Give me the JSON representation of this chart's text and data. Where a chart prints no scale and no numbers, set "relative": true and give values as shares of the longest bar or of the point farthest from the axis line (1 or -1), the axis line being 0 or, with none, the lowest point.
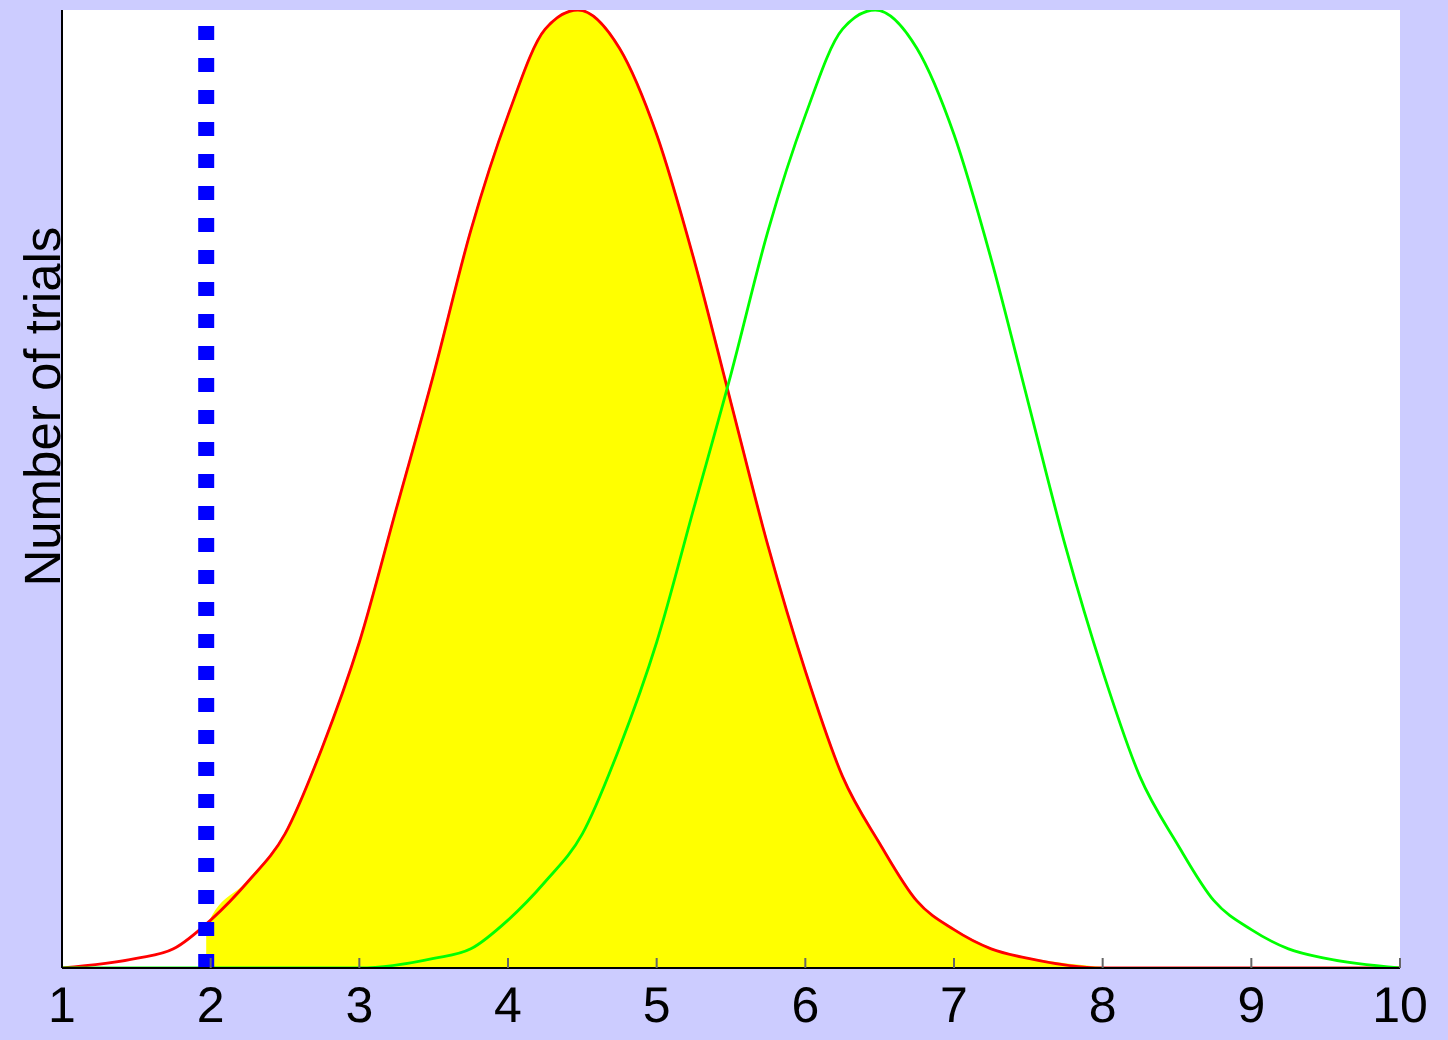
{
  "chart_data": {
    "type": "line",
    "ylabel": "Number of trials",
    "relative": true,
    "xlim": [
      1,
      10
    ],
    "xticks": [
      1,
      2,
      3,
      4,
      5,
      6,
      7,
      8,
      9,
      10
    ],
    "marker": "none",
    "series": [
      {
        "type": "area",
        "color": "#ffff00",
        "x": [
          1.97,
          2,
          2.25,
          2.5,
          2.75,
          3,
          3.25,
          3.5,
          3.75,
          4,
          4.25,
          4.47,
          4.75,
          5,
          5.25,
          5.5,
          5.75,
          6,
          6.25,
          6.5,
          6.75,
          7,
          7.25,
          7.5,
          8
        ],
        "values": [
          0.04,
          0.05,
          0.09,
          0.14,
          0.23,
          0.34,
          0.48,
          0.62,
          0.77,
          0.89,
          0.98,
          1,
          0.96,
          0.87,
          0.74,
          0.59,
          0.44,
          0.31,
          0.2,
          0.13,
          0.07,
          0.04,
          0.02,
          0.01,
          0
        ]
      },
      {
        "type": "line",
        "color": "#ff0000",
        "x": [
          1,
          1.5,
          1.75,
          2,
          2.25,
          2.5,
          2.75,
          3,
          3.25,
          3.5,
          3.75,
          4,
          4.25,
          4.47,
          4.75,
          5,
          5.25,
          5.5,
          5.75,
          6,
          6.25,
          6.5,
          6.75,
          7,
          7.25,
          7.5,
          8,
          10
        ],
        "values": [
          0,
          0.01,
          0.02,
          0.05,
          0.09,
          0.14,
          0.23,
          0.34,
          0.48,
          0.62,
          0.77,
          0.89,
          0.98,
          1,
          0.96,
          0.87,
          0.74,
          0.59,
          0.44,
          0.31,
          0.2,
          0.13,
          0.07,
          0.04,
          0.02,
          0.01,
          0,
          0
        ]
      },
      {
        "type": "line",
        "color": "#00ff00",
        "x": [
          1,
          3,
          3.5,
          3.75,
          4,
          4.25,
          4.5,
          4.75,
          5,
          5.25,
          5.5,
          5.75,
          6,
          6.25,
          6.47,
          6.75,
          7,
          7.25,
          7.5,
          7.75,
          8,
          8.25,
          8.5,
          8.75,
          9,
          9.25,
          9.5,
          10
        ],
        "values": [
          0,
          0,
          0.01,
          0.02,
          0.05,
          0.09,
          0.14,
          0.23,
          0.34,
          0.48,
          0.62,
          0.77,
          0.89,
          0.98,
          1,
          0.96,
          0.87,
          0.74,
          0.59,
          0.44,
          0.31,
          0.2,
          0.13,
          0.07,
          0.04,
          0.02,
          0.01,
          0
        ]
      }
    ],
    "ref_lines": [
      {
        "axis": "x",
        "value": 1.97,
        "color": "#0000ff",
        "line_style": "dotted"
      }
    ]
  }
}
